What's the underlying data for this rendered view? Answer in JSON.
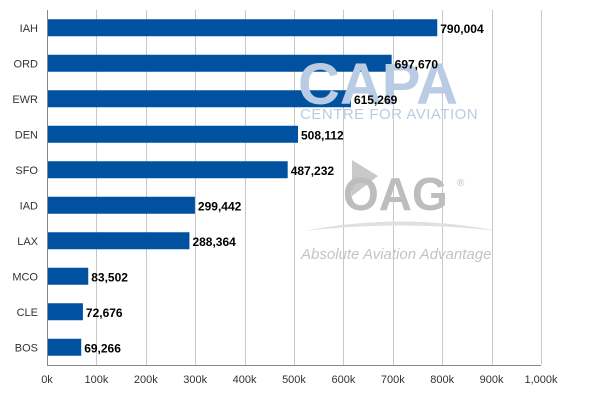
{
  "chart_data": {
    "type": "bar",
    "orientation": "horizontal",
    "categories": [
      "IAH",
      "ORD",
      "EWR",
      "DEN",
      "SFO",
      "IAD",
      "LAX",
      "MCO",
      "CLE",
      "BOS"
    ],
    "values": [
      790004,
      697670,
      615269,
      508112,
      487232,
      299442,
      288364,
      83502,
      72676,
      69266
    ],
    "value_labels": [
      "790,004",
      "697,670",
      "615,269",
      "508,112",
      "487,232",
      "299,442",
      "288,364",
      "83,502",
      "72,676",
      "69,266"
    ],
    "xlim": [
      0,
      1000000
    ],
    "x_ticks": [
      0,
      100000,
      200000,
      300000,
      400000,
      500000,
      600000,
      700000,
      800000,
      900000,
      1000000
    ],
    "x_tick_labels": [
      "0k",
      "100k",
      "200k",
      "300k",
      "400k",
      "500k",
      "600k",
      "700k",
      "800k",
      "900k",
      "1,000k"
    ],
    "grid": "vertical",
    "title": "",
    "xlabel": "",
    "ylabel": "",
    "bar_color": "#0052a0"
  },
  "watermarks": {
    "capa": "CAPA",
    "capa_sub": "CENTRE FOR AVIATION",
    "oag": "OAG",
    "oag_reg": "®",
    "oag_sub": "Absolute Aviation Advantage"
  },
  "colors": {
    "grid": "#c8c8c8",
    "axis": "#888888"
  }
}
